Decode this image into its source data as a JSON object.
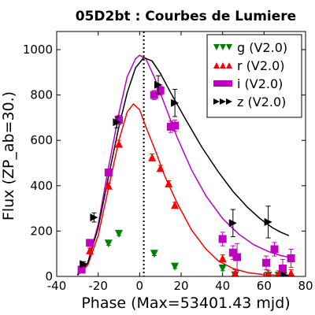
{
  "chart_data": {
    "type": "scatter",
    "title": "05D2bt : Courbes de Lumiere",
    "xlabel": "Phase (Max=53401.43 mjd)",
    "ylabel": "Flux (ZP_ab=30.)",
    "xlim": [
      -40,
      80
    ],
    "ylim": [
      0,
      1080
    ],
    "xticks": [
      "-40",
      "-20",
      "0",
      "20",
      "40",
      "60",
      "80"
    ],
    "yticks": [
      "0",
      "200",
      "400",
      "600",
      "800",
      "1000"
    ],
    "grid": false,
    "legend_position": "top-right",
    "max_phase_line": 2,
    "series": [
      {
        "name": "g (V2.0)",
        "color": "#008000",
        "marker": "triangle-down",
        "points": [
          {
            "x": -15,
            "y": 145,
            "err": 8
          },
          {
            "x": -10,
            "y": 188,
            "err": 8
          },
          {
            "x": 7,
            "y": 100,
            "err": 8
          },
          {
            "x": 17,
            "y": 43,
            "err": 8
          },
          {
            "x": 40,
            "y": 35,
            "err": 10
          },
          {
            "x": 46,
            "y": 5,
            "err": 10
          },
          {
            "x": 62,
            "y": 3,
            "err": 10
          },
          {
            "x": 67,
            "y": 3,
            "err": 10
          }
        ]
      },
      {
        "name": "r (V2.0)",
        "color": "#ff0000",
        "marker": "triangle-up",
        "points": [
          {
            "x": -28,
            "y": 35,
            "err": 10
          },
          {
            "x": -24,
            "y": 115,
            "err": 10
          },
          {
            "x": -15,
            "y": 400,
            "err": 12
          },
          {
            "x": -10,
            "y": 585,
            "err": 15
          },
          {
            "x": 6,
            "y": 525,
            "err": 15
          },
          {
            "x": 10,
            "y": 478,
            "err": 12
          },
          {
            "x": 14,
            "y": 410,
            "err": 12
          },
          {
            "x": 17,
            "y": 315,
            "err": 12
          },
          {
            "x": 40,
            "y": 80,
            "err": 15
          },
          {
            "x": 46,
            "y": 15,
            "err": 15
          },
          {
            "x": 62,
            "y": 12,
            "err": 15
          },
          {
            "x": 67,
            "y": 10,
            "err": 15
          },
          {
            "x": 73,
            "y": 15,
            "err": 15
          }
        ]
      },
      {
        "name": "i (V2.0)",
        "color": "#bf00bf",
        "marker": "square",
        "points": [
          {
            "x": -28,
            "y": 30,
            "err": 10
          },
          {
            "x": -24,
            "y": 148,
            "err": 15
          },
          {
            "x": -15,
            "y": 458,
            "err": 15
          },
          {
            "x": -10,
            "y": 690,
            "err": 20
          },
          {
            "x": 7,
            "y": 800,
            "err": 20
          },
          {
            "x": 10,
            "y": 820,
            "err": 20
          },
          {
            "x": 15,
            "y": 660,
            "err": 25
          },
          {
            "x": 17,
            "y": 665,
            "err": 25
          },
          {
            "x": 40,
            "y": 165,
            "err": 30
          },
          {
            "x": 45,
            "y": 105,
            "err": 30
          },
          {
            "x": 47,
            "y": 85,
            "err": 60
          },
          {
            "x": 61,
            "y": 60,
            "err": 30
          },
          {
            "x": 65,
            "y": 120,
            "err": 30
          },
          {
            "x": 69,
            "y": 35,
            "err": 40
          },
          {
            "x": 73,
            "y": 80,
            "err": 40
          }
        ]
      },
      {
        "name": "z (V2.0)",
        "color": "#000000",
        "marker": "triangle-right",
        "points": [
          {
            "x": -27,
            "y": 55,
            "err": 10
          },
          {
            "x": -22,
            "y": 260,
            "err": 20
          },
          {
            "x": -11,
            "y": 680,
            "err": 25
          },
          {
            "x": 9,
            "y": 845,
            "err": 40
          },
          {
            "x": 17,
            "y": 765,
            "err": 60
          },
          {
            "x": 45,
            "y": 235,
            "err": 60
          },
          {
            "x": 62,
            "y": 240,
            "err": 70
          },
          {
            "x": 70,
            "y": 5,
            "err": 10
          }
        ]
      }
    ],
    "curves": [
      {
        "color": "#ff0000",
        "points": [
          [
            -30,
            5
          ],
          [
            -25,
            50
          ],
          [
            -20,
            180
          ],
          [
            -15,
            390
          ],
          [
            -10,
            600
          ],
          [
            -6,
            725
          ],
          [
            -3,
            760
          ],
          [
            0,
            735
          ],
          [
            3,
            660
          ],
          [
            8,
            545
          ],
          [
            12,
            445
          ],
          [
            18,
            325
          ],
          [
            25,
            205
          ],
          [
            32,
            120
          ],
          [
            38,
            68
          ],
          [
            45,
            35
          ],
          [
            52,
            17
          ],
          [
            60,
            8
          ],
          [
            68,
            4
          ],
          [
            72,
            2
          ]
        ]
      },
      {
        "color": "#bf00bf",
        "points": [
          [
            -30,
            5
          ],
          [
            -25,
            60
          ],
          [
            -20,
            230
          ],
          [
            -15,
            480
          ],
          [
            -10,
            720
          ],
          [
            -6,
            880
          ],
          [
            -2,
            960
          ],
          [
            0,
            975
          ],
          [
            3,
            960
          ],
          [
            7,
            880
          ],
          [
            12,
            760
          ],
          [
            18,
            615
          ],
          [
            25,
            470
          ],
          [
            32,
            355
          ],
          [
            40,
            255
          ],
          [
            48,
            185
          ],
          [
            55,
            140
          ],
          [
            62,
            110
          ],
          [
            68,
            92
          ],
          [
            72,
            85
          ]
        ]
      },
      {
        "color": "#000000",
        "points": [
          [
            -30,
            8
          ],
          [
            -25,
            60
          ],
          [
            -20,
            215
          ],
          [
            -15,
            440
          ],
          [
            -10,
            660
          ],
          [
            -6,
            810
          ],
          [
            -2,
            920
          ],
          [
            2,
            965
          ],
          [
            6,
            950
          ],
          [
            10,
            895
          ],
          [
            15,
            810
          ],
          [
            22,
            695
          ],
          [
            30,
            570
          ],
          [
            38,
            460
          ],
          [
            45,
            375
          ],
          [
            52,
            305
          ],
          [
            58,
            255
          ],
          [
            64,
            215
          ],
          [
            68,
            195
          ],
          [
            72,
            180
          ]
        ]
      }
    ]
  }
}
